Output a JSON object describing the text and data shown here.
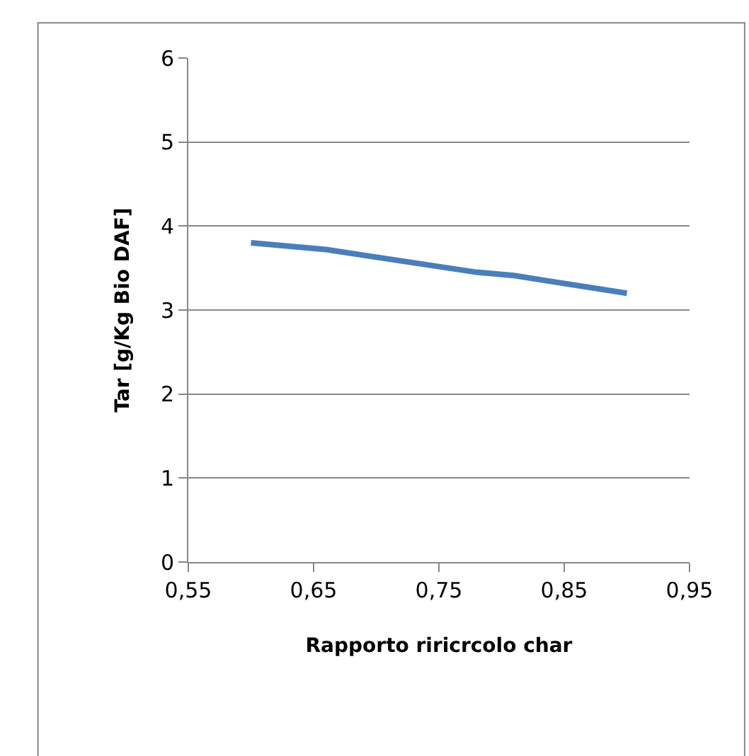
{
  "chart_data": {
    "type": "line",
    "xlabel": "Rapporto riricrcolo char",
    "ylabel": "Tar [g/Kg Bio DAF]",
    "series": [
      {
        "color": "#4a7ebb",
        "x": [
          0.6,
          0.66,
          0.78,
          0.81,
          0.9
        ],
        "values": [
          3.8,
          3.72,
          3.45,
          3.41,
          3.2
        ]
      }
    ],
    "xlim": [
      0.55,
      0.95
    ],
    "xticks": [
      {
        "value": 0.55,
        "label": "0,55"
      },
      {
        "value": 0.65,
        "label": "0,65"
      },
      {
        "value": 0.75,
        "label": "0,75"
      },
      {
        "value": 0.85,
        "label": "0,85"
      },
      {
        "value": 0.95,
        "label": "0,95"
      }
    ],
    "ylim": [
      0,
      6
    ],
    "yticks": [
      0,
      1,
      2,
      3,
      4,
      5,
      6
    ],
    "grid": "y",
    "marker": "none",
    "line_style": "solid",
    "legend": false
  }
}
